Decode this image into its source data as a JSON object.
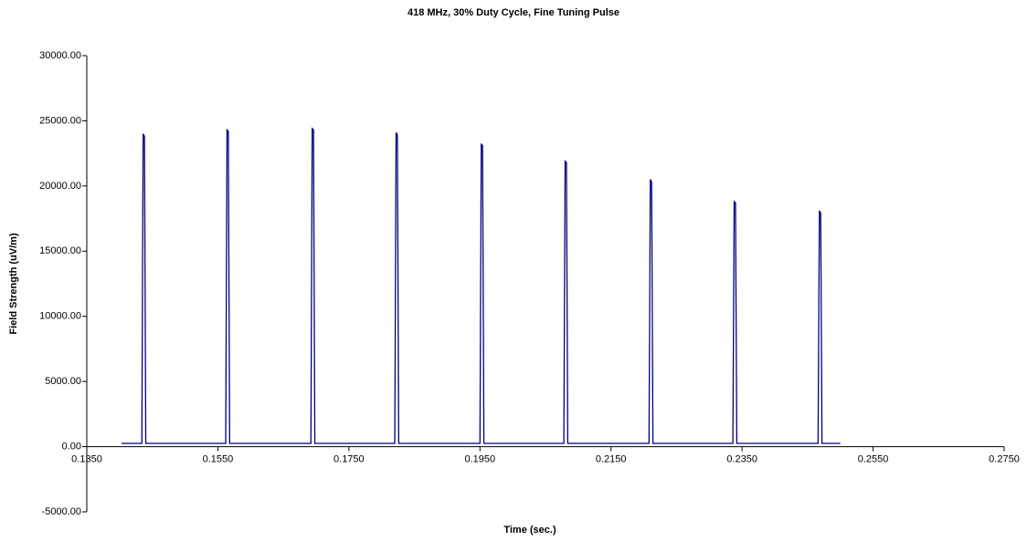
{
  "chart_data": {
    "type": "line",
    "title": "418 MHz, 30% Duty Cycle, Fine Tuning Pulse",
    "x_label": "Time (sec.)",
    "y_label": "Field Strength (uV/m)",
    "x": [
      0.1403,
      0.1434,
      0.1436,
      0.1438,
      0.144,
      0.1562,
      0.1564,
      0.1566,
      0.1568,
      0.1692,
      0.1694,
      0.1696,
      0.1698,
      0.182,
      0.1822,
      0.1824,
      0.1826,
      0.195,
      0.1952,
      0.1954,
      0.1956,
      0.2078,
      0.208,
      0.2082,
      0.2084,
      0.2208,
      0.221,
      0.2212,
      0.2214,
      0.2336,
      0.2338,
      0.234,
      0.2342,
      0.2466,
      0.2468,
      0.247,
      0.2472,
      0.25
    ],
    "series": [
      {
        "color": "#000080",
        "values": [
          250,
          250,
          24000,
          23800,
          250,
          250,
          24300,
          24200,
          250,
          250,
          24400,
          24300,
          250,
          250,
          24100,
          23900,
          250,
          250,
          23200,
          23100,
          250,
          250,
          21900,
          21800,
          250,
          250,
          20500,
          20300,
          250,
          250,
          18800,
          18700,
          250,
          250,
          18100,
          17900,
          250,
          250
        ]
      }
    ],
    "xlim": [
      0.135,
      0.275
    ],
    "xticks": [
      {
        "value": 0.135,
        "label": "0.1350"
      },
      {
        "value": 0.155,
        "label": "0.1550"
      },
      {
        "value": 0.175,
        "label": "0.1750"
      },
      {
        "value": 0.195,
        "label": "0.1950"
      },
      {
        "value": 0.215,
        "label": "0.2150"
      },
      {
        "value": 0.235,
        "label": "0.2350"
      },
      {
        "value": 0.255,
        "label": "0.2550"
      },
      {
        "value": 0.275,
        "label": "0.2750"
      }
    ],
    "ylim": [
      -5000,
      30000
    ],
    "yticks": [
      {
        "value": -5000,
        "label": "-5000.00"
      },
      {
        "value": 0,
        "label": "0.00"
      },
      {
        "value": 5000,
        "label": "5000.00"
      },
      {
        "value": 10000,
        "label": "10000.00"
      },
      {
        "value": 15000,
        "label": "15000.00"
      },
      {
        "value": 20000,
        "label": "20000.00"
      },
      {
        "value": 25000,
        "label": "25000.00"
      },
      {
        "value": 30000,
        "label": "30000.00"
      }
    ],
    "grid": false
  }
}
